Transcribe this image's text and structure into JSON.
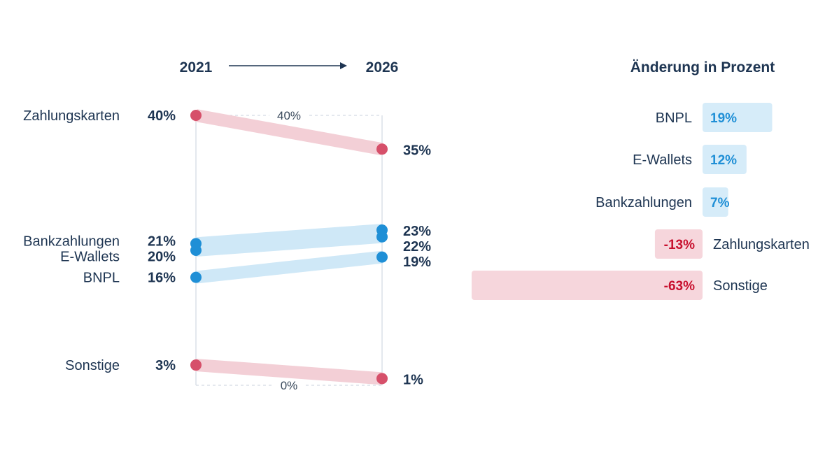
{
  "chart_data": [
    {
      "type": "slope",
      "start_label": "2021",
      "end_label": "2026",
      "ylim": [
        0,
        40
      ],
      "grid_labels": {
        "top": "40%",
        "bottom": "0%"
      },
      "series": [
        {
          "name": "Zahlungskarten",
          "start": 40,
          "end": 35,
          "start_label": "40%",
          "end_label": "35%",
          "trend": "down"
        },
        {
          "name": "Bankzahlungen",
          "start": 21,
          "end": 23,
          "start_label": "21%",
          "end_label": "23%",
          "trend": "up"
        },
        {
          "name": "E-Wallets",
          "start": 20,
          "end": 22,
          "start_label": "20%",
          "end_label": "22%",
          "trend": "up"
        },
        {
          "name": "BNPL",
          "start": 16,
          "end": 19,
          "start_label": "16%",
          "end_label": "19%",
          "trend": "up"
        },
        {
          "name": "Sonstige",
          "start": 3,
          "end": 1,
          "start_label": "3%",
          "end_label": "1%",
          "trend": "down"
        }
      ]
    },
    {
      "type": "bar",
      "title": "Änderung in Prozent",
      "categories": [
        "BNPL",
        "E-Wallets",
        "Bankzahlungen",
        "Zahlungskarten",
        "Sonstige"
      ],
      "values": [
        19,
        12,
        7,
        -13,
        -63
      ],
      "value_labels": [
        "19%",
        "12%",
        "7%",
        "-13%",
        "-63%"
      ]
    }
  ],
  "colors": {
    "text": "#1e3552",
    "up_dot": "#1f8fd6",
    "up_band": "#cfe8f7",
    "down_dot": "#d6506a",
    "down_band": "#f3cfd6",
    "pos_bar": "#d6ecf9",
    "neg_bar": "#f6d6dc",
    "pos_text": "#1f8fd6",
    "neg_text": "#c8102e",
    "grid": "#c9d2dc"
  }
}
